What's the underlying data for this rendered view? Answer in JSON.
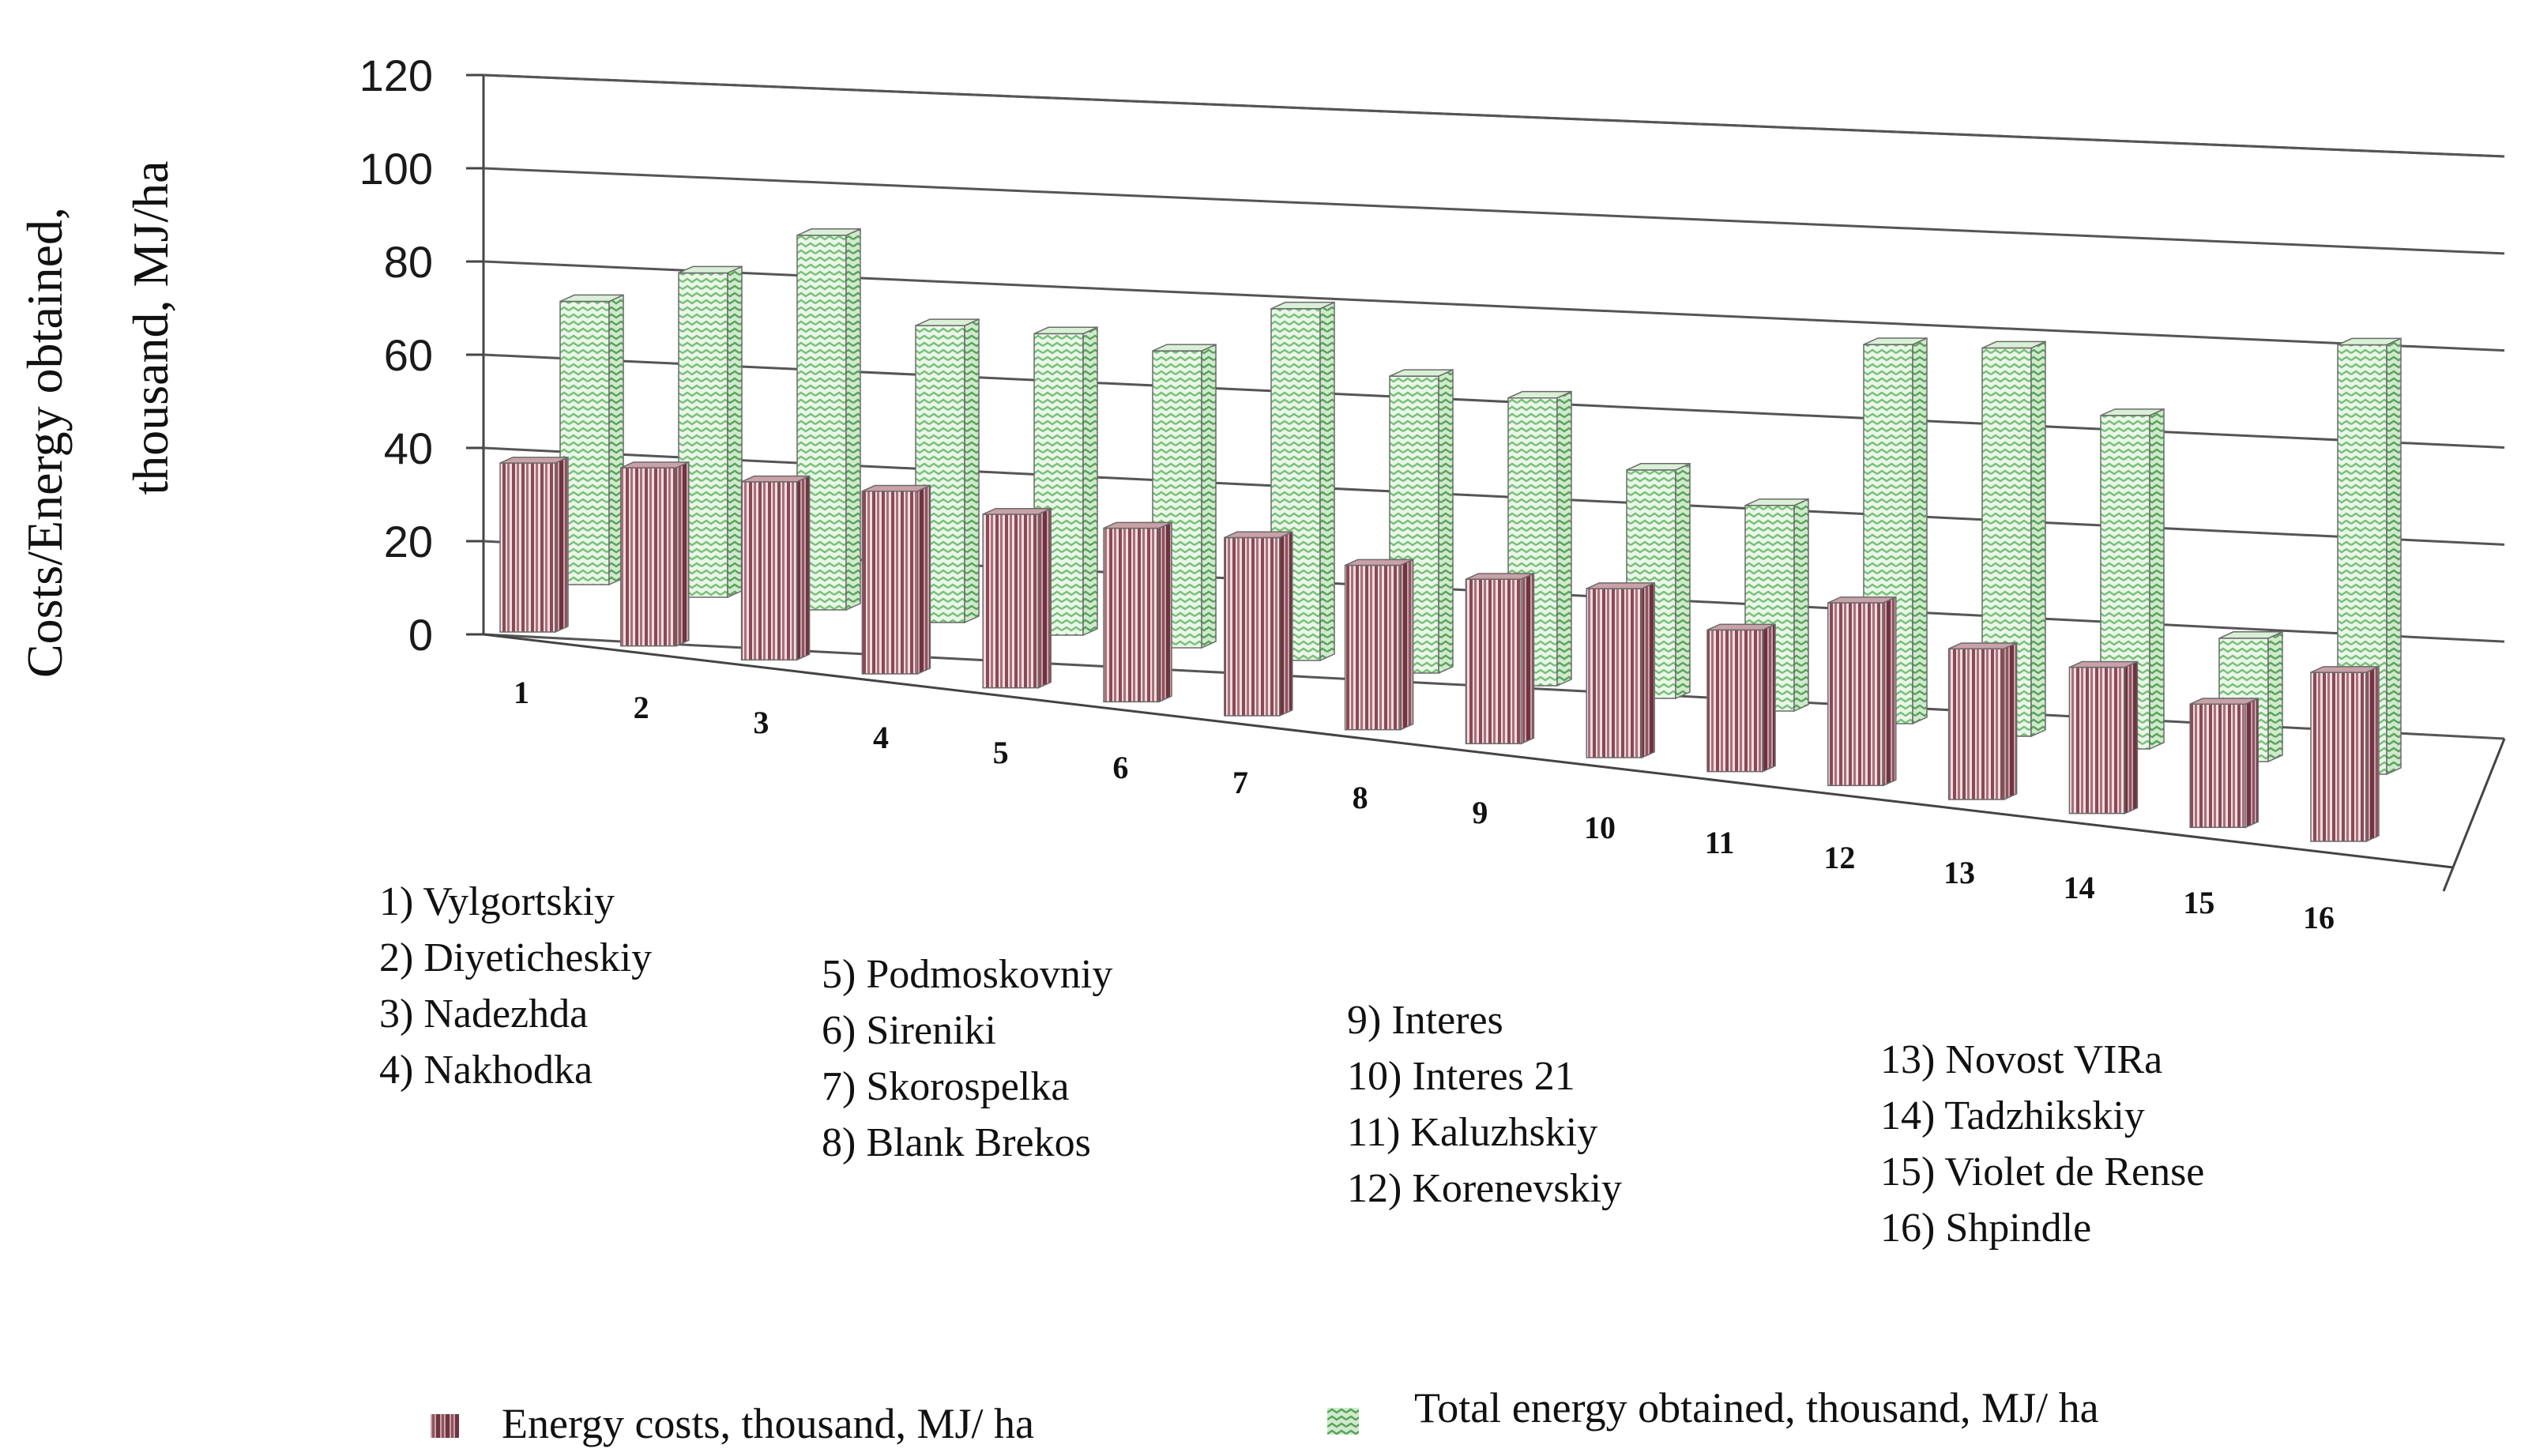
{
  "chart_data": {
    "type": "bar",
    "ylabel_line1": "Costs/Energy obtained,",
    "ylabel_line2": "thousand, MJ/ha",
    "ylim": [
      0,
      120
    ],
    "y_ticks": [
      "0",
      "20",
      "40",
      "60",
      "80",
      "100",
      "120"
    ],
    "categories": [
      "1",
      "2",
      "3",
      "4",
      "5",
      "6",
      "7",
      "8",
      "9",
      "10",
      "11",
      "12",
      "13",
      "14",
      "15",
      "16"
    ],
    "series": [
      {
        "name": "Energy costs, thousand, MJ/ ha",
        "values": [
          37,
          39,
          39,
          40,
          38,
          38,
          39,
          36,
          36,
          37,
          31,
          40,
          33,
          32,
          27,
          37
        ],
        "color": "#b07a84"
      },
      {
        "name": "Total energy obtained, thousand, MJ/ ha",
        "values": [
          62,
          71,
          82,
          65,
          66,
          65,
          77,
          65,
          63,
          50,
          45,
          83,
          85,
          73,
          27,
          94
        ],
        "color": "#a7d8a6"
      }
    ],
    "variety_names": [
      "1) Vylgortskiy",
      "2) Diyeticheskiy",
      "3) Nadezhda",
      "4) Nakhodka",
      "5) Podmoskovniy",
      "6) Sireniki",
      "7) Skorospelka",
      "8) Blank Brekos",
      "9) Interes",
      "10) Interes 21",
      "11) Kaluzhskiy",
      "12) Korenevskiy",
      "13) Novost VIRa",
      "14) Tadzhikskiy",
      "15) Violet de Rense",
      "16) Shpindle"
    ],
    "legend_position": "bottom"
  }
}
